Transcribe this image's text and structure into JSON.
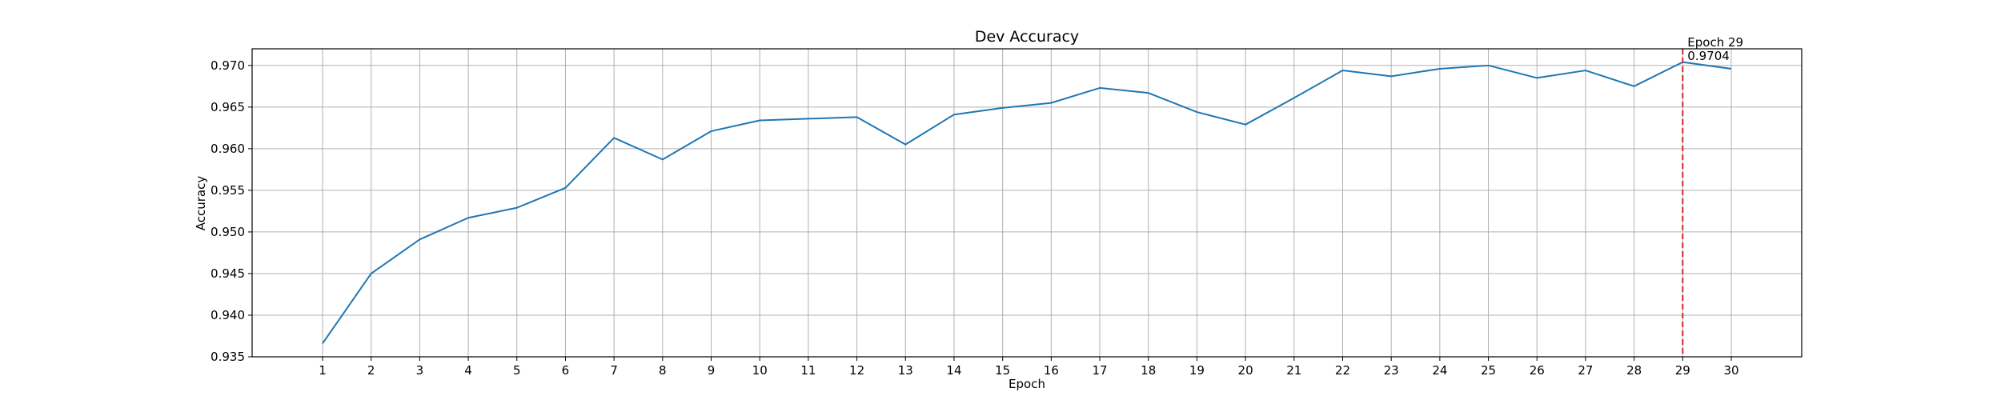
{
  "chart_data": {
    "type": "line",
    "title": "Dev Accuracy",
    "xlabel": "Epoch",
    "ylabel": "Accuracy",
    "x": [
      1,
      2,
      3,
      4,
      5,
      6,
      7,
      8,
      9,
      10,
      11,
      12,
      13,
      14,
      15,
      16,
      17,
      18,
      19,
      20,
      21,
      22,
      23,
      24,
      25,
      26,
      27,
      28,
      29,
      30
    ],
    "series": [
      {
        "values": [
          0.9366,
          0.945,
          0.9491,
          0.9517,
          0.9529,
          0.9553,
          0.9613,
          0.9587,
          0.9621,
          0.9634,
          0.9636,
          0.9638,
          0.9605,
          0.9641,
          0.9649,
          0.9655,
          0.9673,
          0.9667,
          0.9644,
          0.9629,
          0.9661,
          0.9694,
          0.9687,
          0.9696,
          0.97,
          0.9685,
          0.9694,
          0.9675,
          0.9704,
          0.9696
        ],
        "color": "#1f77b4"
      }
    ],
    "xticks": [
      "1",
      "2",
      "3",
      "4",
      "5",
      "6",
      "7",
      "8",
      "9",
      "10",
      "11",
      "12",
      "13",
      "14",
      "15",
      "16",
      "17",
      "18",
      "19",
      "20",
      "21",
      "22",
      "23",
      "24",
      "25",
      "26",
      "27",
      "28",
      "29",
      "30"
    ],
    "yticks": [
      "0.935",
      "0.940",
      "0.945",
      "0.950",
      "0.955",
      "0.960",
      "0.965",
      "0.970"
    ],
    "ytick_values": [
      0.935,
      0.94,
      0.945,
      0.95,
      0.955,
      0.96,
      0.965,
      0.97
    ],
    "xlim": [
      -0.45,
      31.45
    ],
    "ylim": [
      0.935,
      0.972
    ],
    "grid": true,
    "marker": {
      "x": 29,
      "label_epoch": "Epoch 29",
      "label_value": "0.9704",
      "line_color": "#d62728",
      "line_style": "dashed"
    }
  }
}
